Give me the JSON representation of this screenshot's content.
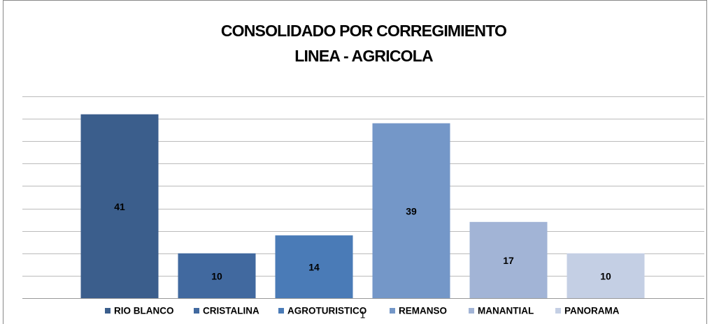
{
  "chart_data": {
    "type": "bar",
    "title": [
      "CONSOLIDADO POR CORREGIMIENTO",
      "LINEA - AGRICOLA"
    ],
    "categories": [
      "1"
    ],
    "series": [
      {
        "name": "RIO BLANCO",
        "color": "#3b5e8c",
        "values": [
          41
        ]
      },
      {
        "name": "CRISTALINA",
        "color": "#41699f",
        "values": [
          10
        ]
      },
      {
        "name": "AGROTURISTICO",
        "color": "#4a7bb7",
        "values": [
          14
        ]
      },
      {
        "name": "REMANSO",
        "color": "#7497c8",
        "values": [
          39
        ]
      },
      {
        "name": "MANANTIAL",
        "color": "#a2b4d6",
        "values": [
          17
        ]
      },
      {
        "name": "PANORAMA",
        "color": "#c4cfe4",
        "values": [
          10
        ]
      }
    ],
    "ylim": [
      0,
      45
    ],
    "yticks": [
      0,
      5,
      10,
      15,
      20,
      25,
      30,
      35,
      40,
      45
    ],
    "grid": true,
    "legend": "bottom"
  }
}
